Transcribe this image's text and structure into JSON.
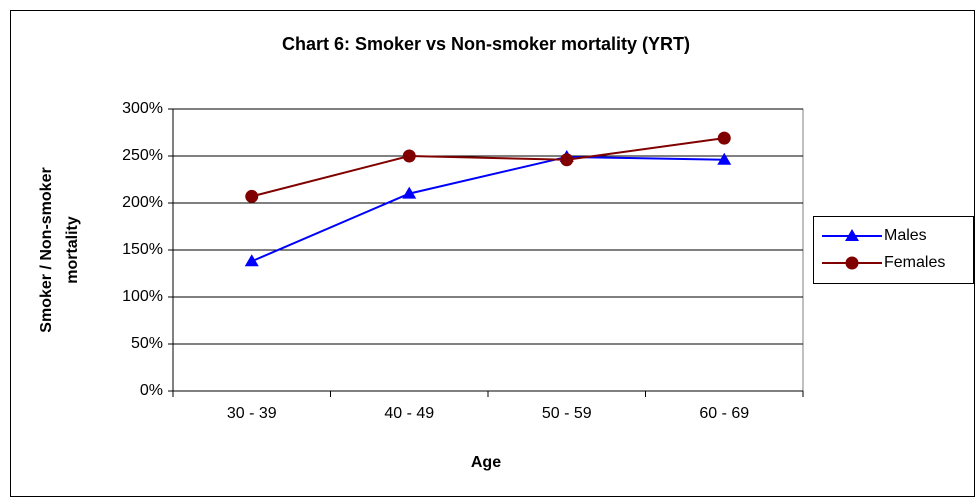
{
  "chart_data": {
    "type": "line",
    "title": "Chart 6: Smoker vs Non-smoker mortality (YRT)",
    "xlabel": "Age",
    "ylabel": [
      "Smoker / Non-smoker",
      "mortality"
    ],
    "categories": [
      "30 - 39",
      "40 - 49",
      "50 - 59",
      "60 - 69"
    ],
    "series": [
      {
        "name": "Males",
        "color": "#0000ff",
        "marker": "triangle",
        "values": [
          138,
          210,
          249,
          246
        ]
      },
      {
        "name": "Females",
        "color": "#800000",
        "marker": "circle",
        "values": [
          207,
          250,
          246,
          269
        ]
      }
    ],
    "ylim": [
      0,
      300
    ],
    "yticks": [
      {
        "value": 0,
        "label": "0%"
      },
      {
        "value": 50,
        "label": "50%"
      },
      {
        "value": 100,
        "label": "100%"
      },
      {
        "value": 150,
        "label": "150%"
      },
      {
        "value": 200,
        "label": "200%"
      },
      {
        "value": 250,
        "label": "250%"
      },
      {
        "value": 300,
        "label": "300%"
      }
    ],
    "grid": true,
    "legend": "right"
  }
}
